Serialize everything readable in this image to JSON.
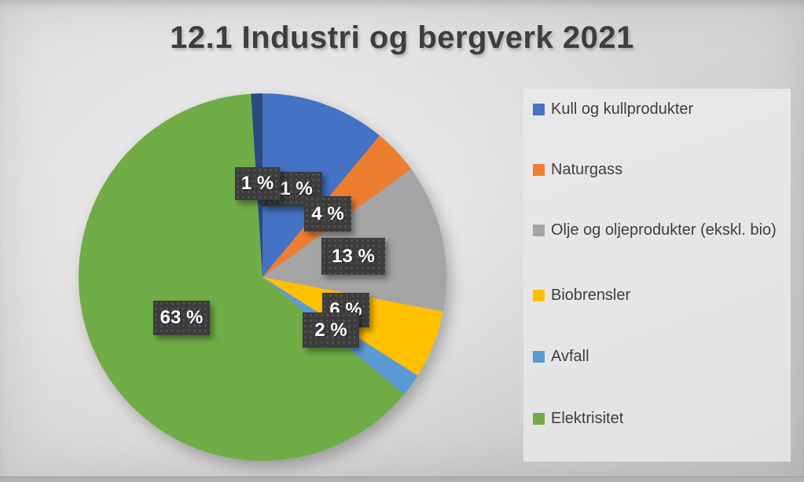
{
  "title": "12.1 Industri og bergverk 2021",
  "title_color": "#3e3e3e",
  "text_color": "#3f3f3f",
  "chart_data": {
    "type": "pie",
    "title": "12.1 Industri og bergverk 2021",
    "units": "percent",
    "start_angle_deg": 0,
    "direction": "clockwise",
    "legend_position": "right",
    "data_labels": "percent",
    "label_box_color": "#3c3c3c",
    "label_text_color": "#ffffff",
    "series": [
      {
        "name": "Kull og kullprodukter",
        "value": 11,
        "label": "11 %",
        "color": "#4472C4",
        "legend_visible": true,
        "note": "label partially hidden behind the 1 % box; only '1 %' visible"
      },
      {
        "name": "Naturgass",
        "value": 4,
        "label": "4 %",
        "color": "#ED7D31",
        "legend_visible": true
      },
      {
        "name": "Olje og oljeprodukter (ekskl. bio)",
        "value": 13,
        "label": "13 %",
        "color": "#A5A5A5",
        "legend_visible": true
      },
      {
        "name": "Biobrensler",
        "value": 6,
        "label": "6 %",
        "color": "#FFC000",
        "legend_visible": true,
        "note": "label partially covered by the 2 % box"
      },
      {
        "name": "Avfall",
        "value": 2,
        "label": "2 %",
        "color": "#5B9BD5",
        "legend_visible": true
      },
      {
        "name": "Elektrisitet",
        "value": 63,
        "label": "63 %",
        "color": "#70AD47",
        "legend_visible": true
      },
      {
        "name": "",
        "value": 1,
        "label": "1 %",
        "color": "#2B4A7D",
        "legend_visible": false,
        "note": "legend entry cut off below image edge"
      }
    ],
    "label_boxes": [
      {
        "x": 332,
        "y": 219,
        "w": 78,
        "h": 44
      },
      {
        "x": 387,
        "y": 250,
        "w": 60,
        "h": 45
      },
      {
        "x": 409,
        "y": 303,
        "w": 81,
        "h": 47
      },
      {
        "x": 410,
        "y": 373,
        "w": 60,
        "h": 44
      },
      {
        "x": 385,
        "y": 398,
        "w": 72,
        "h": 45
      },
      {
        "x": 195,
        "y": 383,
        "w": 72,
        "h": 44
      },
      {
        "x": 299,
        "y": 213,
        "w": 57,
        "h": 42
      }
    ]
  }
}
